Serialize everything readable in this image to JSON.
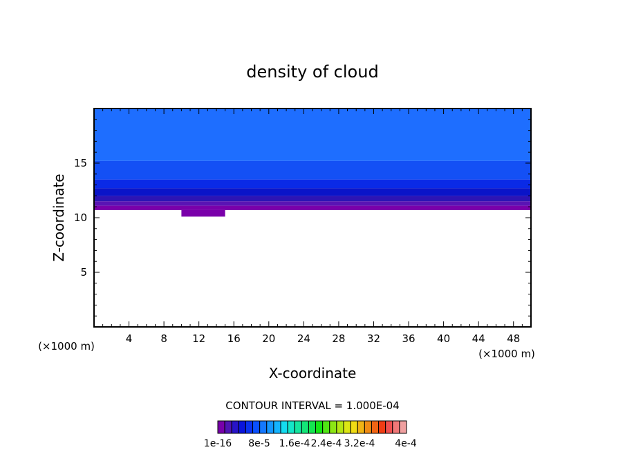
{
  "chart_data": {
    "type": "heatmap",
    "title": "density of cloud",
    "xlabel": "X-coordinate",
    "ylabel": "Z-coordinate",
    "x_unit_left": "(×1000 m)",
    "x_unit_right": "(×1000 m)",
    "xlim": [
      0,
      50
    ],
    "ylim": [
      0,
      20
    ],
    "x_ticks": [
      4,
      8,
      12,
      16,
      20,
      24,
      28,
      32,
      36,
      40,
      44,
      48
    ],
    "y_ticks": [
      5,
      10,
      15
    ],
    "field_bands": [
      {
        "z_bottom": 15.2,
        "z_top": 20,
        "color": "#1e6eff"
      },
      {
        "z_bottom": 13.5,
        "z_top": 15.2,
        "color": "#1450f5"
      },
      {
        "z_bottom": 12.7,
        "z_top": 13.5,
        "color": "#0a2ae6"
      },
      {
        "z_bottom": 12.0,
        "z_top": 12.7,
        "color": "#0a14c8"
      },
      {
        "z_bottom": 11.5,
        "z_top": 12.0,
        "color": "#2d14b4"
      },
      {
        "z_bottom": 11.1,
        "z_top": 11.5,
        "color": "#5a14b4"
      },
      {
        "z_bottom": 10.7,
        "z_top": 11.1,
        "color": "#7a00aa"
      }
    ],
    "cloud_base_z": 10.7,
    "lower_patch": {
      "x_start": 10,
      "x_end": 15,
      "z_bottom": 10.1
    },
    "contour_interval_label": "CONTOUR INTERVAL = 1.000E-04",
    "colorbar": {
      "colors": [
        "#7800aa",
        "#5014b4",
        "#2814c8",
        "#0a14dc",
        "#0a32f0",
        "#0a50ff",
        "#1478ff",
        "#1496ff",
        "#14b4ff",
        "#14dcf0",
        "#14e6c8",
        "#14e6a0",
        "#14e678",
        "#14e650",
        "#14e614",
        "#50e614",
        "#8ce614",
        "#b4e614",
        "#dce614",
        "#f0dc14",
        "#f0b414",
        "#f08c14",
        "#f06414",
        "#f03c14",
        "#f05050",
        "#f07878",
        "#f0a0a0"
      ],
      "tick_labels": [
        "1e-16",
        "8e-5",
        "1.6e-4",
        "2.4e-4",
        "3.2e-4",
        "4e-4"
      ]
    }
  }
}
